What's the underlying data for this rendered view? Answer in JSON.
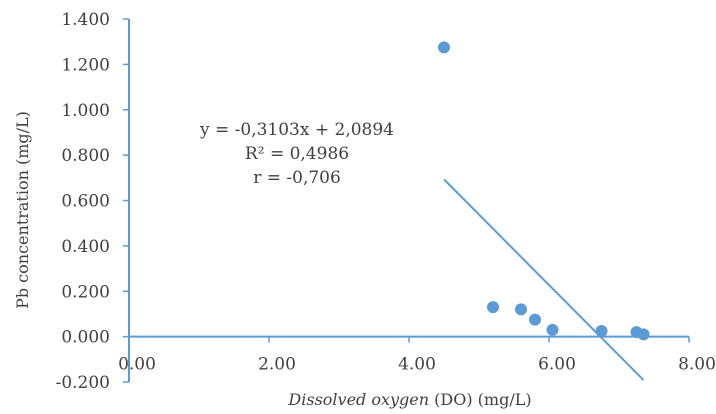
{
  "chart_data": {
    "type": "scatter",
    "title": "",
    "xlabel_italic": "Dissolved oxygen",
    "xlabel_rest": " (DO)  (mg/L)",
    "ylabel": "Pb concentration (mg/L)",
    "xlim": [
      0,
      8
    ],
    "ylim": [
      -0.2,
      1.4
    ],
    "x_ticks": [
      0,
      2,
      4,
      6,
      8
    ],
    "x_tick_labels": [
      "0.00",
      "2.00",
      "4.00",
      "6.00",
      "8.00"
    ],
    "y_ticks": [
      -0.2,
      0,
      0.2,
      0.4,
      0.6,
      0.8,
      1.0,
      1.2,
      1.4
    ],
    "y_tick_labels": [
      "-0.200",
      "0.000",
      "0.200",
      "0.400",
      "0.600",
      "0.800",
      "1.000",
      "1.200",
      "1.400"
    ],
    "grid": false,
    "series": [
      {
        "points": [
          {
            "x": 4.5,
            "y": 1.275
          },
          {
            "x": 5.2,
            "y": 0.13
          },
          {
            "x": 5.6,
            "y": 0.12
          },
          {
            "x": 5.8,
            "y": 0.075
          },
          {
            "x": 6.05,
            "y": 0.03
          },
          {
            "x": 6.75,
            "y": 0.025
          },
          {
            "x": 7.25,
            "y": 0.02
          },
          {
            "x": 7.35,
            "y": 0.01
          }
        ],
        "color": "#5B9BD5"
      }
    ],
    "trendline": {
      "slope": -0.3103,
      "intercept": 2.0894,
      "x_range": [
        4.5,
        7.35
      ],
      "color": "#5B9BD5"
    },
    "annotations": [
      "y = -0,3103x + 2,0894",
      "R² = 0,4986",
      "r = -0,706"
    ]
  }
}
